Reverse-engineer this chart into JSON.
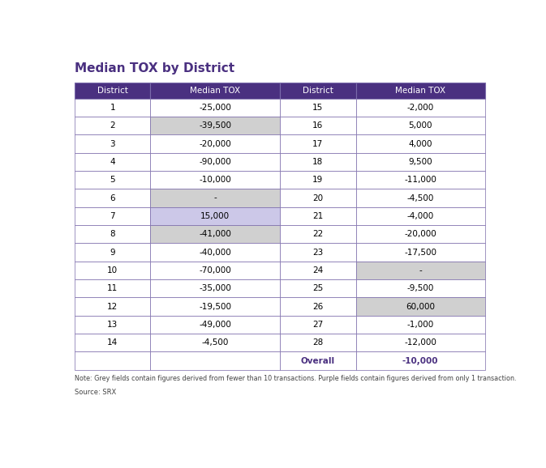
{
  "title": "Median TOX by District",
  "col_headers": [
    "District",
    "Median TOX",
    "District",
    "Median TOX"
  ],
  "left_data": [
    [
      "1",
      "-25,000"
    ],
    [
      "2",
      "-39,500"
    ],
    [
      "3",
      "-20,000"
    ],
    [
      "4",
      "-90,000"
    ],
    [
      "5",
      "-10,000"
    ],
    [
      "6",
      "-"
    ],
    [
      "7",
      "15,000"
    ],
    [
      "8",
      "-41,000"
    ],
    [
      "9",
      "-40,000"
    ],
    [
      "10",
      "-70,000"
    ],
    [
      "11",
      "-35,000"
    ],
    [
      "12",
      "-19,500"
    ],
    [
      "13",
      "-49,000"
    ],
    [
      "14",
      "-4,500"
    ]
  ],
  "right_data": [
    [
      "15",
      "-2,000"
    ],
    [
      "16",
      "5,000"
    ],
    [
      "17",
      "4,000"
    ],
    [
      "18",
      "9,500"
    ],
    [
      "19",
      "-11,000"
    ],
    [
      "20",
      "-4,500"
    ],
    [
      "21",
      "-4,000"
    ],
    [
      "22",
      "-20,000"
    ],
    [
      "23",
      "-17,500"
    ],
    [
      "24",
      "-"
    ],
    [
      "25",
      "-9,500"
    ],
    [
      "26",
      "60,000"
    ],
    [
      "27",
      "-1,000"
    ],
    [
      "28",
      "-12,000"
    ]
  ],
  "overall_label": "Overall",
  "overall_value": "-10,000",
  "left_cell_colors": [
    [
      "white",
      "white"
    ],
    [
      "white",
      "#d0d0d0"
    ],
    [
      "white",
      "white"
    ],
    [
      "white",
      "white"
    ],
    [
      "white",
      "white"
    ],
    [
      "white",
      "#d0d0d0"
    ],
    [
      "white",
      "#ccc8e8"
    ],
    [
      "white",
      "#d0d0d0"
    ],
    [
      "white",
      "white"
    ],
    [
      "white",
      "white"
    ],
    [
      "white",
      "white"
    ],
    [
      "white",
      "white"
    ],
    [
      "white",
      "white"
    ],
    [
      "white",
      "white"
    ]
  ],
  "right_cell_colors": [
    [
      "white",
      "white"
    ],
    [
      "white",
      "white"
    ],
    [
      "white",
      "white"
    ],
    [
      "white",
      "white"
    ],
    [
      "white",
      "white"
    ],
    [
      "white",
      "white"
    ],
    [
      "white",
      "white"
    ],
    [
      "white",
      "white"
    ],
    [
      "white",
      "white"
    ],
    [
      "white",
      "#d0d0d0"
    ],
    [
      "white",
      "white"
    ],
    [
      "white",
      "#d0d0d0"
    ],
    [
      "white",
      "white"
    ],
    [
      "white",
      "white"
    ]
  ],
  "header_bg": "#4a3080",
  "header_fg": "white",
  "overall_fg": "#4a3080",
  "note": "Note: Grey fields contain figures derived from fewer than 10 transactions. Purple fields contain figures derived from only 1 transaction.",
  "source": "Source: SRX",
  "title_color": "#4a3080",
  "border_color": "#7a6aaa",
  "title_fontsize": 11,
  "header_fontsize": 7.5,
  "cell_fontsize": 7.5,
  "note_fontsize": 5.8,
  "source_fontsize": 6.0
}
